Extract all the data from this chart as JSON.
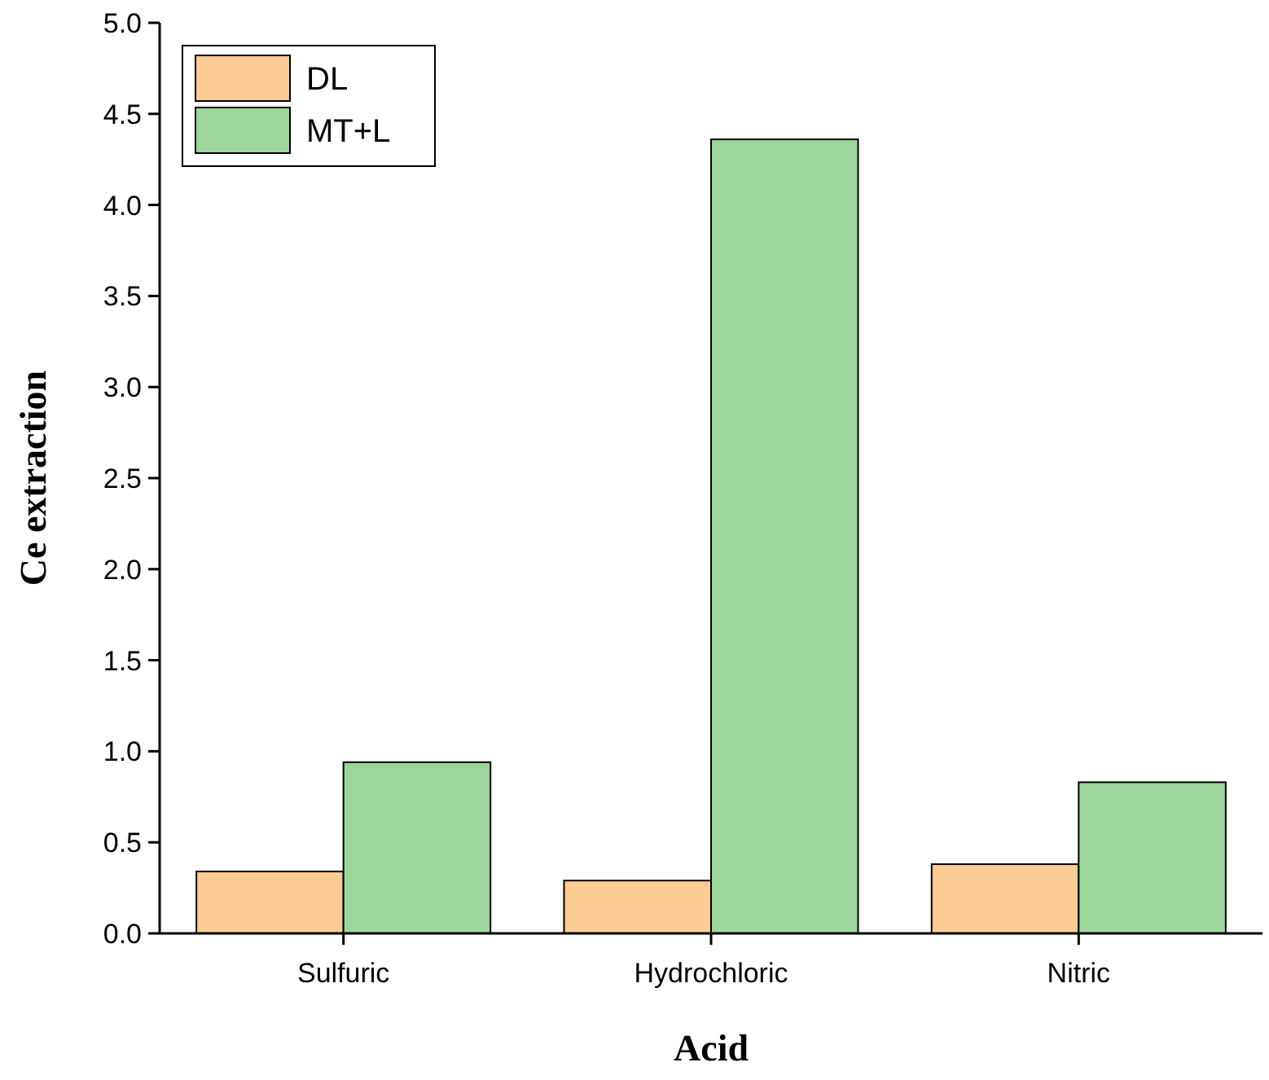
{
  "chart_data": {
    "type": "bar",
    "xlabel": "Acid",
    "ylabel": "Ce extraction",
    "categories": [
      "Sulfuric",
      "Hydrochloric",
      "Nitric"
    ],
    "series": [
      {
        "name": "DL",
        "color": "#fdcc94",
        "values": [
          0.34,
          0.29,
          0.38
        ]
      },
      {
        "name": "MT+L",
        "color": "#9cd69a",
        "values": [
          0.94,
          4.36,
          0.83
        ]
      }
    ],
    "ylim": [
      0,
      5
    ],
    "yticks": [
      {
        "value": 0,
        "label": "0.0"
      },
      {
        "value": 0.5,
        "label": "0.5"
      },
      {
        "value": 1,
        "label": "1.0"
      },
      {
        "value": 1.5,
        "label": "1.5"
      },
      {
        "value": 2,
        "label": "2.0"
      },
      {
        "value": 2.5,
        "label": "2.5"
      },
      {
        "value": 3,
        "label": "3.0"
      },
      {
        "value": 3.5,
        "label": "3.5"
      },
      {
        "value": 4,
        "label": "4.0"
      },
      {
        "value": 4.5,
        "label": "4.5"
      },
      {
        "value": 5,
        "label": "5.0"
      }
    ],
    "legend": "top left",
    "grid": false
  }
}
